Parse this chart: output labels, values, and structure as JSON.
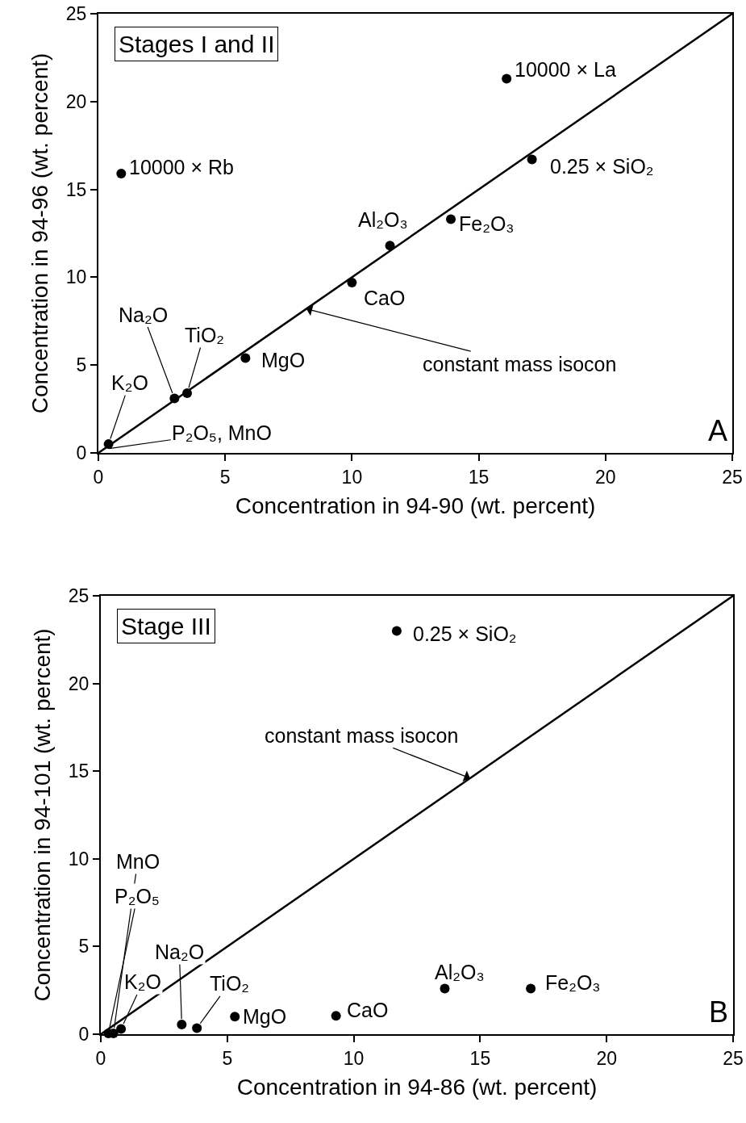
{
  "chart_data": [
    {
      "type": "scatter",
      "title": "Stages I and II",
      "xlabel": "Concentration in 94-90 (wt. percent)",
      "ylabel": "Concentration in 94-96 (wt. percent)",
      "xlim": [
        0,
        25
      ],
      "ylim": [
        0,
        25
      ],
      "xticks": [
        0,
        5,
        10,
        15,
        20,
        25
      ],
      "yticks": [
        0,
        5,
        10,
        15,
        20,
        25
      ],
      "grid": false,
      "series": [
        {
          "type": "scatter",
          "color": "#000000",
          "marker": "circle",
          "x": [
            0.9,
            16.1,
            17.1,
            11.5,
            13.9,
            10.0,
            5.8,
            3.0,
            3.5,
            0.4
          ],
          "values": [
            15.9,
            21.3,
            16.7,
            11.8,
            13.3,
            9.7,
            5.4,
            3.1,
            3.4,
            0.5
          ]
        },
        {
          "type": "line",
          "color": "#000000",
          "line_style": "solid",
          "x": [
            0,
            25
          ],
          "values": [
            0,
            25
          ]
        }
      ],
      "annotations": [
        "A",
        {
          "text": "constant mass isocon",
          "x": 8.2,
          "y": 8.2
        },
        {
          "text": "10000 × Rb",
          "x": 0.9,
          "y": 15.9
        },
        {
          "text": "10000 × La",
          "x": 16.1,
          "y": 21.3
        },
        {
          "text": "0.25 × SiO₂",
          "x": 17.1,
          "y": 16.7
        },
        {
          "text": "Al₂O₃",
          "x": 11.5,
          "y": 11.8
        },
        {
          "text": "Fe₂O₃",
          "x": 13.9,
          "y": 13.3
        },
        {
          "text": "CaO",
          "x": 10.0,
          "y": 9.7
        },
        {
          "text": "MgO",
          "x": 5.8,
          "y": 5.4
        },
        {
          "text": "Na₂O",
          "x": 3.0,
          "y": 3.1
        },
        {
          "text": "TiO₂",
          "x": 3.5,
          "y": 3.4
        },
        {
          "text": "K₂O",
          "x": 0.4,
          "y": 0.5
        },
        {
          "text": "P₂O₅, MnO",
          "x": 0.2,
          "y": 0.2
        }
      ]
    },
    {
      "type": "scatter",
      "title": "Stage III",
      "xlabel": "Concentration in 94-86 (wt. percent)",
      "ylabel": "Concentration in 94-101 (wt. percent)",
      "xlim": [
        0,
        25
      ],
      "ylim": [
        0,
        25
      ],
      "xticks": [
        0,
        5,
        10,
        15,
        20,
        25
      ],
      "yticks": [
        0,
        5,
        10,
        15,
        20,
        25
      ],
      "grid": false,
      "series": [
        {
          "type": "scatter",
          "color": "#000000",
          "marker": "circle",
          "x": [
            11.7,
            13.6,
            17.0,
            9.3,
            5.3,
            3.2,
            3.8,
            0.8,
            0.5,
            0.3
          ],
          "values": [
            23.0,
            2.6,
            2.6,
            1.05,
            1.0,
            0.55,
            0.35,
            0.3,
            0.05,
            0.05
          ]
        },
        {
          "type": "line",
          "color": "#000000",
          "line_style": "solid",
          "x": [
            0,
            25
          ],
          "values": [
            0,
            25
          ]
        }
      ],
      "annotations": [
        "B",
        {
          "text": "constant mass isocon",
          "x": 14.6,
          "y": 14.6
        },
        {
          "text": "0.25 × SiO₂",
          "x": 11.7,
          "y": 23.0
        },
        {
          "text": "Al₂O₃",
          "x": 13.6,
          "y": 2.6
        },
        {
          "text": "Fe₂O₃",
          "x": 17.0,
          "y": 2.6
        },
        {
          "text": "CaO",
          "x": 9.3,
          "y": 1.05
        },
        {
          "text": "MgO",
          "x": 5.3,
          "y": 1.0
        },
        {
          "text": "Na₂O",
          "x": 3.2,
          "y": 0.55
        },
        {
          "text": "TiO₂",
          "x": 3.8,
          "y": 0.35
        },
        {
          "text": "K₂O",
          "x": 0.8,
          "y": 0.3
        },
        {
          "text": "MnO",
          "x": 0.5,
          "y": 0.05
        },
        {
          "text": "P₂O₅",
          "x": 0.3,
          "y": 0.05
        }
      ]
    }
  ]
}
